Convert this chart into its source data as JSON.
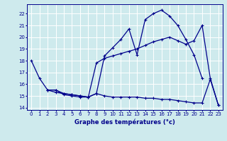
{
  "title": "Graphe des températures (°c)",
  "bg_color": "#ceeaed",
  "line_color": "#00008b",
  "grid_color": "#b8d8dc",
  "xlim": [
    -0.5,
    23.5
  ],
  "ylim": [
    13.8,
    22.8
  ],
  "xticks": [
    0,
    1,
    2,
    3,
    4,
    5,
    6,
    7,
    8,
    9,
    10,
    11,
    12,
    13,
    14,
    15,
    16,
    17,
    18,
    19,
    20,
    21,
    22,
    23
  ],
  "yticks": [
    14,
    15,
    16,
    17,
    18,
    19,
    20,
    21,
    22
  ],
  "line1_x": [
    0,
    1,
    2,
    3,
    4,
    5,
    6,
    7,
    8,
    9,
    10,
    11,
    12,
    13,
    14,
    15,
    16,
    17,
    18,
    19,
    20,
    21
  ],
  "line1_y": [
    18.0,
    16.5,
    15.5,
    15.3,
    15.2,
    15.1,
    15.0,
    14.9,
    15.2,
    18.4,
    19.1,
    19.8,
    20.7,
    18.5,
    21.5,
    22.0,
    22.3,
    21.8,
    21.0,
    19.8,
    18.5,
    16.5
  ],
  "line2_x": [
    2,
    3,
    4,
    5,
    6,
    7,
    8,
    9,
    10,
    11,
    12,
    13,
    14,
    15,
    16,
    17,
    18,
    19,
    20,
    21,
    22,
    23
  ],
  "line2_y": [
    15.5,
    15.5,
    15.2,
    15.1,
    15.0,
    14.9,
    17.8,
    18.2,
    18.4,
    18.6,
    18.8,
    19.0,
    19.3,
    19.6,
    19.8,
    20.0,
    19.7,
    19.4,
    19.7,
    21.0,
    16.5,
    14.2
  ],
  "line3_x": [
    2,
    3,
    4,
    5,
    6,
    7,
    8,
    9,
    10,
    11,
    12,
    13,
    14,
    15,
    16,
    17,
    18,
    19,
    20,
    21,
    22,
    23
  ],
  "line3_y": [
    15.5,
    15.5,
    15.1,
    15.0,
    14.9,
    14.9,
    15.2,
    15.0,
    14.9,
    14.9,
    14.9,
    14.9,
    14.8,
    14.8,
    14.7,
    14.7,
    14.6,
    14.5,
    14.4,
    14.4,
    16.4,
    14.2
  ]
}
